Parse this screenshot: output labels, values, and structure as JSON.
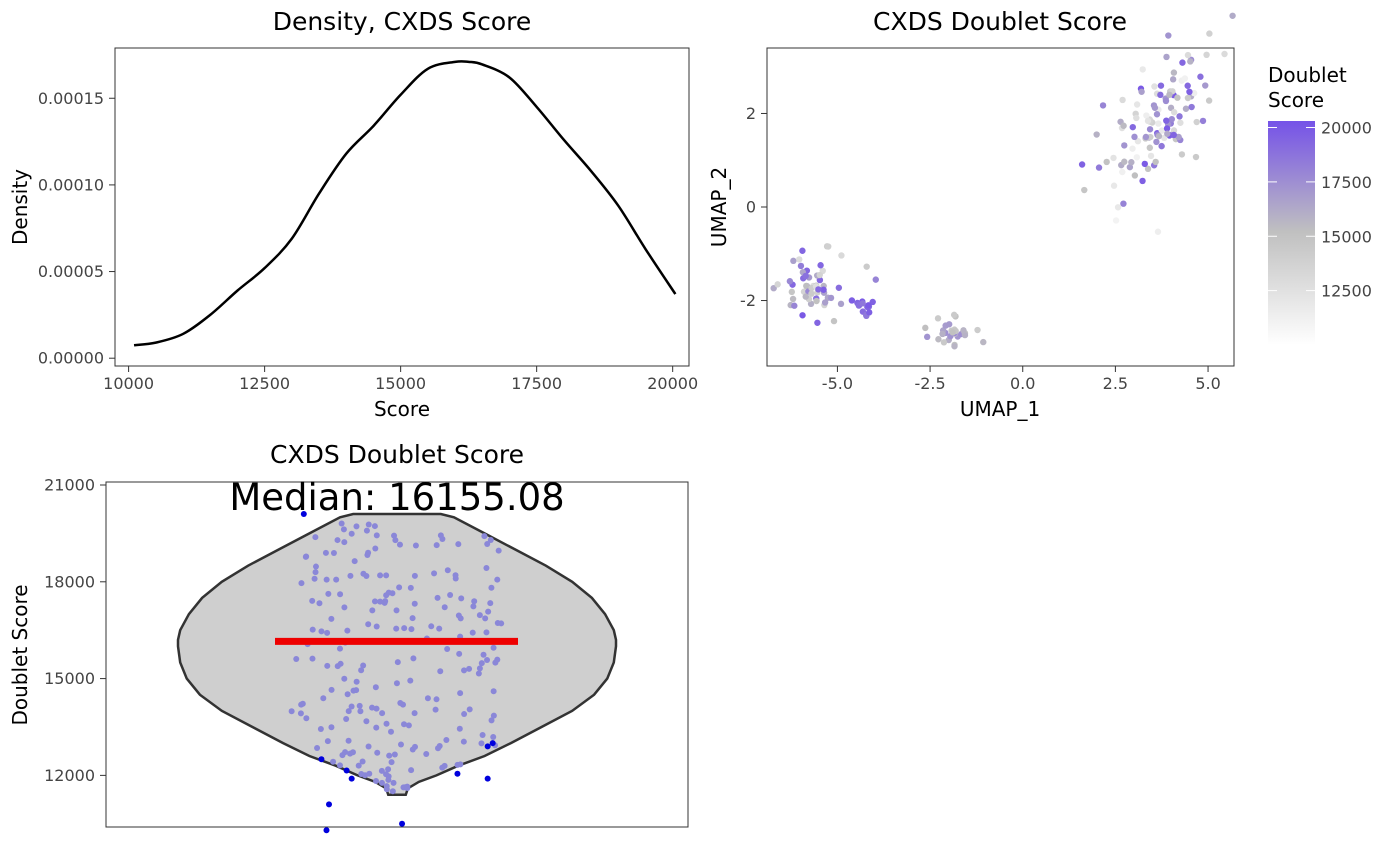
{
  "chart_data": [
    {
      "id": "density",
      "type": "line",
      "title": "Density, CXDS Score",
      "xlabel": "Score",
      "ylabel": "Density",
      "xlim": [
        9750,
        20300
      ],
      "ylim": [
        -4.5e-06,
        0.000179
      ],
      "xticks": [
        10000,
        12500,
        15000,
        17500,
        20000
      ],
      "xtick_labels": [
        "10000",
        "12500",
        "15000",
        "17500",
        "20000"
      ],
      "yticks": [
        0,
        5e-05,
        0.0001,
        0.00015
      ],
      "ytick_labels": [
        "0.00000",
        "0.00005",
        "0.00010",
        "0.00015"
      ],
      "grid": false,
      "x": [
        10100,
        10500,
        11000,
        11500,
        12000,
        12500,
        13000,
        13500,
        14000,
        14500,
        15000,
        15500,
        16000,
        16250,
        16500,
        17000,
        17500,
        18000,
        18500,
        19000,
        19500,
        20050
      ],
      "y": [
        7.5e-06,
        9e-06,
        1.4e-05,
        2.5e-05,
        3.9e-05,
        5.2e-05,
        6.9e-05,
        9.5e-05,
        0.000118,
        0.000134,
        0.000152,
        0.000167,
        0.000171,
        0.000171,
        0.0001695,
        0.000162,
        0.000145,
        0.000126,
        0.000108,
        8.8e-05,
        6.3e-05,
        3.7e-05
      ]
    },
    {
      "id": "umap",
      "type": "scatter",
      "title": "CXDS Doublet Score",
      "xlabel": "UMAP_1",
      "ylabel": "UMAP_2",
      "xlim": [
        -6.9,
        5.7
      ],
      "ylim": [
        -3.4,
        3.4
      ],
      "xticks": [
        -5,
        -2.5,
        0,
        2.5,
        5
      ],
      "xtick_labels": [
        "-5.0",
        "-2.5",
        "0.0",
        "2.5",
        "5.0"
      ],
      "yticks": [
        -2,
        0,
        2
      ],
      "ytick_labels": [
        "-2",
        "0",
        "2"
      ],
      "grid": false,
      "legend": {
        "title_lines": [
          "Doublet",
          "Score"
        ],
        "position": "right",
        "low": 10000,
        "high": 20300,
        "low_color": "#ffffff",
        "mid_color": "#c0c0c0",
        "mid_value": 15200,
        "high_color": "#7552e8",
        "ticks": [
          12500,
          15000,
          17500,
          20000
        ],
        "tick_labels": [
          "12500",
          "15000",
          "17500",
          "20000"
        ]
      },
      "clusters": [
        {
          "cx": -5.6,
          "cy": -1.7,
          "sx": 0.42,
          "sy": 0.38,
          "n": 55,
          "smin": 12500,
          "smax": 20000
        },
        {
          "cx": -4.3,
          "cy": -2.15,
          "sx": 0.2,
          "sy": 0.11,
          "n": 14,
          "smin": 18500,
          "smax": 20000
        },
        {
          "cx": -1.9,
          "cy": -2.7,
          "sx": 0.28,
          "sy": 0.17,
          "n": 30,
          "smin": 14000,
          "smax": 17800
        },
        {
          "cx": 3.7,
          "cy": 1.85,
          "sx": 0.85,
          "sy": 0.55,
          "n": 120,
          "smin": 11000,
          "smax": 20000
        }
      ]
    },
    {
      "id": "violin",
      "type": "violin",
      "title": "CXDS Doublet Score",
      "annotation": "Median: 16155.08",
      "median": 16155.08,
      "xlabel": "",
      "ylabel": "Doublet Score",
      "ylim": [
        10400,
        21000
      ],
      "yticks": [
        12000,
        15000,
        18000,
        21000
      ],
      "ytick_labels": [
        "12000",
        "15000",
        "18000",
        "21000"
      ],
      "grid": false,
      "violin_min": 11400,
      "violin_max": 20100,
      "profile_y": [
        11400,
        11600,
        11800,
        12000,
        12300,
        12600,
        13000,
        13500,
        14000,
        14500,
        15000,
        15500,
        16000,
        16200,
        16500,
        17000,
        17500,
        18000,
        18500,
        19000,
        19500,
        20000,
        20100
      ],
      "profile_halfwidth": [
        0.04,
        0.05,
        0.1,
        0.18,
        0.28,
        0.4,
        0.52,
        0.66,
        0.8,
        0.9,
        0.96,
        0.99,
        1.0,
        1.0,
        0.99,
        0.95,
        0.89,
        0.8,
        0.68,
        0.54,
        0.4,
        0.26,
        0.2
      ],
      "violin_fill": "#cfcfcf",
      "point_color": "#8a87d8",
      "outlier_color": "#0000dd",
      "median_color": "#ee0000",
      "outliers": [
        {
          "x": -0.3,
          "y": 12500
        },
        {
          "x": -0.2,
          "y": 12150
        },
        {
          "x": -0.18,
          "y": 11900
        },
        {
          "x": -0.27,
          "y": 11100
        },
        {
          "x": -0.28,
          "y": 10300
        },
        {
          "x": 0.24,
          "y": 12050
        },
        {
          "x": 0.36,
          "y": 12900
        },
        {
          "x": 0.38,
          "y": 13000
        },
        {
          "x": 0.36,
          "y": 11900
        },
        {
          "x": 0.02,
          "y": 10500
        },
        {
          "x": -0.37,
          "y": 20100
        }
      ],
      "n_points": 220
    }
  ]
}
